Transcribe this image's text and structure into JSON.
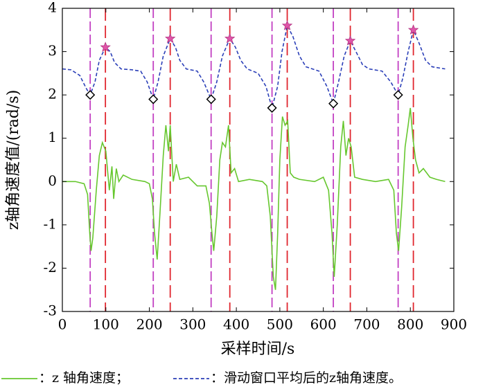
{
  "chart_data": {
    "type": "line",
    "xlabel": "采样时间/s",
    "ylabel": "z轴角速度值/(rad/s)",
    "xlim": [
      0,
      900
    ],
    "ylim": [
      -3,
      4
    ],
    "xticks": [
      0,
      100,
      200,
      300,
      400,
      500,
      600,
      700,
      800,
      900
    ],
    "yticks": [
      -3,
      -2,
      -1,
      0,
      1,
      2,
      3,
      4
    ],
    "series": [
      {
        "name": "：z 轴角速度；",
        "color": "#66c72e",
        "x": [
          0,
          30,
          50,
          58,
          63,
          66,
          70,
          78,
          85,
          92,
          100,
          108,
          114,
          118,
          124,
          130,
          140,
          160,
          190,
          200,
          207,
          212,
          218,
          224,
          232,
          238,
          244,
          248,
          255,
          262,
          270,
          290,
          310,
          330,
          338,
          344,
          348,
          355,
          362,
          368,
          375,
          382,
          388,
          396,
          405,
          430,
          460,
          470,
          478,
          485,
          490,
          495,
          500,
          506,
          512,
          518,
          524,
          532,
          545,
          580,
          600,
          612,
          620,
          625,
          632,
          640,
          646,
          652,
          658,
          664,
          672,
          690,
          720,
          750,
          762,
          768,
          773,
          780,
          788,
          795,
          800,
          806,
          812,
          820,
          830,
          845,
          860,
          880
        ],
        "values": [
          0,
          0,
          -0.05,
          -0.3,
          -1.2,
          -1.6,
          -1.3,
          -0.2,
          0.6,
          0.9,
          0.7,
          -0.2,
          0.35,
          -0.4,
          0.3,
          0,
          0.15,
          0.05,
          0,
          -0.05,
          -0.4,
          -1.2,
          -1.8,
          -0.8,
          0.6,
          1.3,
          0.7,
          1.3,
          0,
          0.4,
          0.05,
          0.1,
          -0.1,
          -0.1,
          -0.5,
          -1.2,
          -1.6,
          -0.8,
          0.5,
          0.9,
          0.8,
          1.3,
          0.2,
          0.3,
          0,
          0.05,
          0,
          -0.1,
          -0.8,
          -2.2,
          -2.5,
          -1.2,
          0.5,
          1.5,
          1.3,
          1.4,
          0.2,
          0.1,
          0.05,
          0,
          0.1,
          -0.2,
          -1.2,
          -2.2,
          -1,
          0.8,
          1.4,
          0.6,
          1,
          0.8,
          0.1,
          0.05,
          0,
          0.05,
          -0.2,
          -1.2,
          -1.6,
          -0.6,
          0.8,
          1.3,
          1.7,
          1,
          0.5,
          0.2,
          0.3,
          0.1,
          0.05,
          0
        ]
      },
      {
        "name": "：滑动窗口平均后的z轴角速度。",
        "color": "#2b3fb8",
        "dashed": true,
        "x": [
          0,
          20,
          40,
          55,
          64,
          75,
          85,
          99,
          110,
          120,
          135,
          160,
          180,
          195,
          209,
          220,
          232,
          248,
          260,
          270,
          285,
          310,
          325,
          342,
          355,
          368,
          385,
          398,
          410,
          425,
          450,
          468,
          482,
          495,
          505,
          517,
          530,
          545,
          560,
          590,
          608,
          623,
          635,
          648,
          662,
          675,
          690,
          705,
          735,
          755,
          772,
          783,
          795,
          807,
          820,
          835,
          850,
          880
        ],
        "values": [
          2.6,
          2.58,
          2.45,
          2.15,
          2,
          2.3,
          2.8,
          3.1,
          3,
          2.75,
          2.6,
          2.58,
          2.55,
          2.3,
          1.9,
          2.3,
          2.9,
          3.3,
          3.1,
          2.8,
          2.6,
          2.55,
          2.3,
          1.9,
          2.3,
          2.9,
          3.3,
          3.1,
          2.8,
          2.6,
          2.5,
          2.2,
          1.7,
          2.2,
          3,
          3.6,
          3.35,
          2.9,
          2.65,
          2.55,
          2.2,
          1.8,
          2.3,
          2.9,
          3.25,
          3,
          2.7,
          2.6,
          2.55,
          2.3,
          2,
          2.4,
          3,
          3.5,
          3.2,
          2.8,
          2.65,
          2.6
        ]
      }
    ],
    "minima": {
      "color": "#c23fc2",
      "x": [
        64,
        209,
        342,
        482,
        623,
        772
      ],
      "values": [
        2,
        1.9,
        1.9,
        1.7,
        1.8,
        2
      ]
    },
    "maxima": {
      "color": "#e0262e",
      "marker_color": "#e055a8",
      "x": [
        99,
        248,
        385,
        517,
        662,
        807
      ],
      "values": [
        3.1,
        3.3,
        3.3,
        3.6,
        3.25,
        3.5
      ]
    }
  }
}
